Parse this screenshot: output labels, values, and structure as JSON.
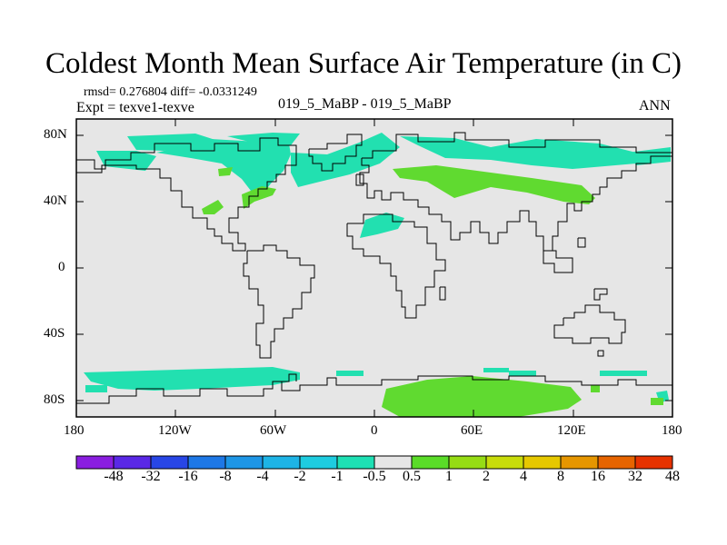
{
  "figure": {
    "title": "Coldest Month Mean Surface Air Temperature (in C)",
    "stats": "rmsd= 0.276804 diff= -0.0331249",
    "expt": "Expt = texve1-texve",
    "center_label": "019_5_MaBP - 019_5_MaBP",
    "season": "ANN"
  },
  "axes": {
    "y_ticks": [
      "80N",
      "40N",
      "0",
      "40S",
      "80S"
    ],
    "x_ticks": [
      "180",
      "120W",
      "60W",
      "0",
      "60E",
      "120E",
      "180"
    ]
  },
  "colorbar": {
    "labels": [
      "-48",
      "-32",
      "-16",
      "-8",
      "-4",
      "-2",
      "-1",
      "-0.5",
      "0.5",
      "1",
      "2",
      "4",
      "8",
      "16",
      "32",
      "48"
    ],
    "colors": [
      "#8a1ee0",
      "#5a28e6",
      "#2846e6",
      "#1e78e6",
      "#1e96e6",
      "#1eb4e6",
      "#1ecce0",
      "#1ee0b4",
      "#e6e6e6",
      "#5adc28",
      "#96dc14",
      "#c8dc0a",
      "#e6c800",
      "#e69600",
      "#e66400",
      "#e63200"
    ]
  },
  "colors": {
    "ocean": "#e6e6e6",
    "cool_anomaly": "#22e0b0",
    "warm_anomaly": "#60da30",
    "coast": "#000000"
  }
}
